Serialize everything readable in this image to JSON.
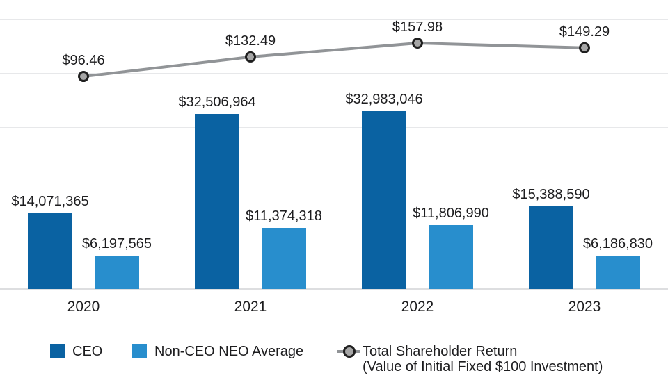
{
  "chart_data": {
    "type": "bar+line",
    "title": "",
    "categories": [
      "2020",
      "2021",
      "2022",
      "2023"
    ],
    "series": [
      {
        "name": "CEO",
        "type": "bar",
        "color": "#0a62a2",
        "values": [
          14071365,
          32506964,
          32983046,
          15388590
        ],
        "labels": [
          "$14,071,365",
          "$32,506,964",
          "$32,983,046",
          "$15,388,590"
        ]
      },
      {
        "name": "Non-CEO NEO Average",
        "type": "bar",
        "color": "#288ecd",
        "values": [
          6197565,
          11374318,
          11806990,
          6186830
        ],
        "labels": [
          "$6,197,565",
          "$11,374,318",
          "$11,806,990",
          "$6,186,830"
        ]
      },
      {
        "name": "Total Shareholder Return (Value of Initial Fixed $100 Investment)",
        "type": "line",
        "color": "#919497",
        "marker_fill": "#a6a6a6",
        "marker_stroke": "#1f1f1f",
        "values": [
          96.46,
          132.49,
          157.98,
          149.29
        ],
        "labels": [
          "$96.46",
          "$132.49",
          "$157.98",
          "$149.29"
        ]
      }
    ],
    "ylim_bars": [
      0,
      50000000
    ],
    "grid": true,
    "gridline_color": "#e7e8ea",
    "legend_position": "bottom",
    "legend": [
      {
        "label": "CEO",
        "swatch": "square",
        "color": "#0a62a2"
      },
      {
        "label": "Non-CEO NEO Average",
        "swatch": "square",
        "color": "#288ecd"
      },
      {
        "label_line1": "Total Shareholder Return",
        "label_line2": "(Value of Initial Fixed $100 Investment)",
        "swatch": "line-marker",
        "color": "#919497"
      }
    ]
  }
}
